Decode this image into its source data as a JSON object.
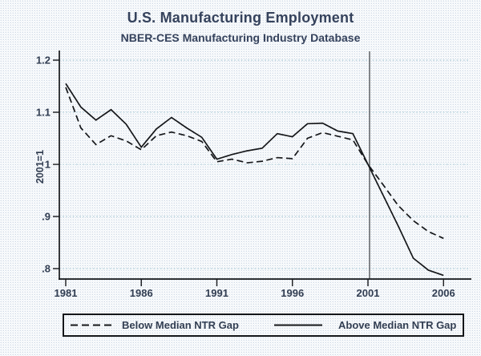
{
  "chart_data": {
    "type": "line",
    "title": "U.S. Manufacturing Employment",
    "subtitle": "NBER-CES Manufacturing Industry Database",
    "xlabel": "",
    "ylabel": "2001=1",
    "x": [
      1981,
      1982,
      1983,
      1984,
      1985,
      1986,
      1987,
      1988,
      1989,
      1990,
      1991,
      1992,
      1993,
      1994,
      1995,
      1996,
      1997,
      1998,
      1999,
      2000,
      2001,
      2002,
      2003,
      2004,
      2005,
      2006
    ],
    "series": [
      {
        "name": "Below Median NTR Gap",
        "line_style": "dashed",
        "values": [
          1.148,
          1.07,
          1.038,
          1.055,
          1.045,
          1.028,
          1.055,
          1.062,
          1.055,
          1.044,
          1.005,
          1.01,
          1.003,
          1.006,
          1.013,
          1.011,
          1.05,
          1.061,
          1.054,
          1.047,
          1.0,
          0.961,
          0.921,
          0.892,
          0.871,
          0.858
        ]
      },
      {
        "name": "Above Median NTR Gap",
        "line_style": "solid",
        "values": [
          1.155,
          1.11,
          1.085,
          1.105,
          1.077,
          1.033,
          1.068,
          1.09,
          1.07,
          1.052,
          1.01,
          1.019,
          1.026,
          1.031,
          1.059,
          1.053,
          1.078,
          1.079,
          1.064,
          1.059,
          1.0,
          0.941,
          0.882,
          0.82,
          0.797,
          0.787
        ]
      }
    ],
    "x_ticks": [
      1981,
      1986,
      1991,
      1996,
      2001,
      2006
    ],
    "y_ticks": [
      1.2,
      1.1,
      1.0,
      0.9,
      0.8
    ],
    "y_tick_labels": [
      "1.2",
      "1.1",
      "1",
      ".9",
      ".8"
    ],
    "xlim": [
      1981,
      2006
    ],
    "ylim": [
      0.76,
      1.22
    ],
    "grid": true,
    "reference_line_x": 2001,
    "legend_position": "bottom"
  },
  "colors": {
    "title_text": "#35425c",
    "axis_text": "#323e52",
    "series_line": "#15171a",
    "axis_line": "#15171a",
    "gridline": "#a4c9d4",
    "reference_line": "#474b4f",
    "background": "#ffffff"
  }
}
